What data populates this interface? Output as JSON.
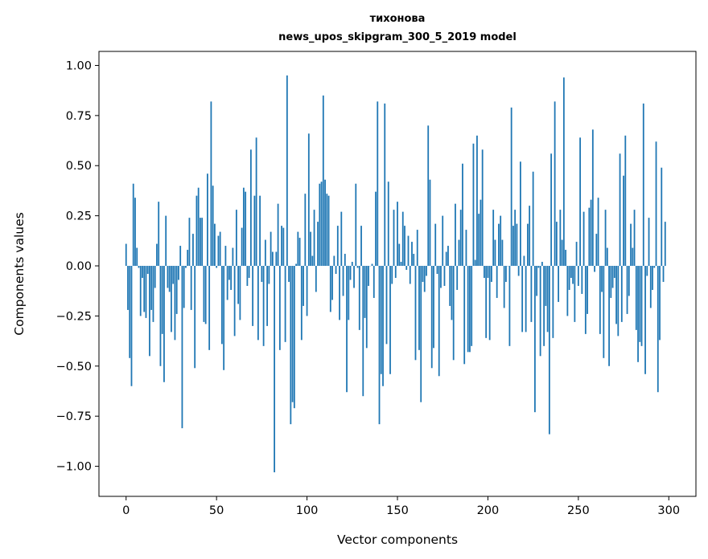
{
  "chart_data": {
    "type": "bar",
    "title": [
      "тихонова",
      "news_upos_skipgram_300_5_2019 model"
    ],
    "xlabel": "Vector components",
    "ylabel": "Components values",
    "xlim": [
      -15,
      315
    ],
    "ylim": [
      -1.15,
      1.07
    ],
    "xticks": [
      0,
      50,
      100,
      150,
      200,
      250,
      300
    ],
    "xtick_labels": [
      "0",
      "50",
      "100",
      "150",
      "200",
      "250",
      "300"
    ],
    "yticks": [
      -1.0,
      -0.75,
      -0.5,
      -0.25,
      0.0,
      0.25,
      0.5,
      0.75,
      1.0
    ],
    "ytick_labels": [
      "−1.00",
      "−0.75",
      "−0.50",
      "−0.25",
      "0.00",
      "0.25",
      "0.50",
      "0.75",
      "1.00"
    ],
    "grid": false,
    "bar_width": 0.8,
    "color": "#1f77b4",
    "values": [
      0.11,
      -0.22,
      -0.46,
      -0.6,
      0.41,
      0.34,
      0.09,
      -0.01,
      -0.25,
      -0.06,
      -0.23,
      -0.26,
      -0.04,
      -0.45,
      -0.22,
      -0.28,
      -0.11,
      0.11,
      0.32,
      -0.5,
      -0.34,
      -0.58,
      0.25,
      -0.11,
      -0.13,
      -0.33,
      -0.09,
      -0.37,
      -0.24,
      -0.07,
      0.1,
      -0.81,
      -0.21,
      -0.01,
      0.08,
      0.24,
      -0.22,
      0.16,
      -0.51,
      0.35,
      0.39,
      0.24,
      0.24,
      -0.28,
      -0.29,
      0.46,
      -0.42,
      0.82,
      0.4,
      0.21,
      -0.01,
      0.15,
      0.17,
      -0.39,
      -0.52,
      0.1,
      -0.17,
      -0.07,
      -0.12,
      0.09,
      -0.35,
      0.28,
      -0.19,
      -0.27,
      0.19,
      0.39,
      0.37,
      -0.1,
      -0.06,
      0.58,
      -0.3,
      0.35,
      0.64,
      -0.37,
      0.35,
      -0.08,
      -0.4,
      0.13,
      -0.3,
      -0.09,
      0.17,
      0.07,
      -1.03,
      0.07,
      0.31,
      -0.42,
      0.2,
      0.19,
      -0.38,
      0.95,
      -0.08,
      -0.79,
      -0.68,
      -0.71,
      0.01,
      0.17,
      0.14,
      -0.37,
      -0.2,
      0.36,
      -0.25,
      0.66,
      0.17,
      0.05,
      0.28,
      -0.13,
      0.22,
      0.41,
      0.42,
      0.85,
      0.43,
      0.36,
      0.35,
      -0.23,
      -0.17,
      0.05,
      -0.04,
      0.2,
      -0.27,
      0.27,
      -0.15,
      0.06,
      -0.63,
      -0.27,
      -0.07,
      0.02,
      -0.11,
      0.41,
      -0.01,
      -0.32,
      0.2,
      -0.65,
      -0.26,
      -0.41,
      -0.1,
      0.0,
      0.01,
      -0.16,
      0.37,
      0.82,
      -0.79,
      -0.54,
      -0.6,
      0.81,
      -0.39,
      0.42,
      -0.54,
      -0.09,
      0.28,
      -0.06,
      0.32,
      0.11,
      0.02,
      0.27,
      0.2,
      -0.02,
      0.15,
      -0.09,
      0.12,
      0.06,
      -0.47,
      0.18,
      -0.42,
      -0.68,
      -0.08,
      -0.13,
      -0.05,
      0.7,
      0.43,
      -0.51,
      -0.41,
      0.21,
      -0.04,
      -0.55,
      -0.11,
      0.25,
      -0.1,
      0.07,
      0.1,
      -0.2,
      -0.27,
      -0.47,
      0.31,
      -0.12,
      0.13,
      0.28,
      0.51,
      -0.49,
      0.18,
      -0.43,
      -0.43,
      -0.4,
      0.61,
      0.03,
      0.65,
      0.26,
      0.33,
      0.58,
      -0.06,
      -0.36,
      -0.06,
      -0.37,
      -0.08,
      0.28,
      0.13,
      -0.16,
      0.21,
      0.25,
      0.13,
      -0.21,
      -0.08,
      0.0,
      -0.4,
      0.79,
      0.2,
      0.28,
      0.21,
      -0.05,
      0.52,
      -0.33,
      0.05,
      -0.33,
      0.21,
      0.3,
      -0.28,
      0.47,
      -0.73,
      -0.15,
      -0.01,
      -0.45,
      0.02,
      -0.4,
      -0.2,
      -0.33,
      -0.84,
      0.56,
      -0.36,
      0.82,
      0.22,
      -0.18,
      0.28,
      0.13,
      0.94,
      0.08,
      -0.25,
      -0.12,
      -0.06,
      -0.09,
      -0.28,
      0.12,
      -0.1,
      0.64,
      -0.14,
      0.27,
      -0.34,
      -0.24,
      0.29,
      0.33,
      0.68,
      -0.03,
      0.16,
      0.34,
      -0.34,
      -0.13,
      -0.46,
      0.28,
      0.09,
      -0.5,
      -0.16,
      -0.11,
      -0.06,
      -0.29,
      -0.35,
      0.56,
      -0.28,
      0.45,
      0.65,
      -0.24,
      -0.15,
      0.21,
      0.09,
      0.28,
      -0.32,
      -0.48,
      -0.38,
      -0.4,
      0.81,
      -0.54,
      -0.05,
      0.24,
      -0.21,
      -0.12,
      -0.01,
      0.62,
      -0.63,
      -0.37,
      0.49,
      -0.08,
      0.22
    ]
  }
}
